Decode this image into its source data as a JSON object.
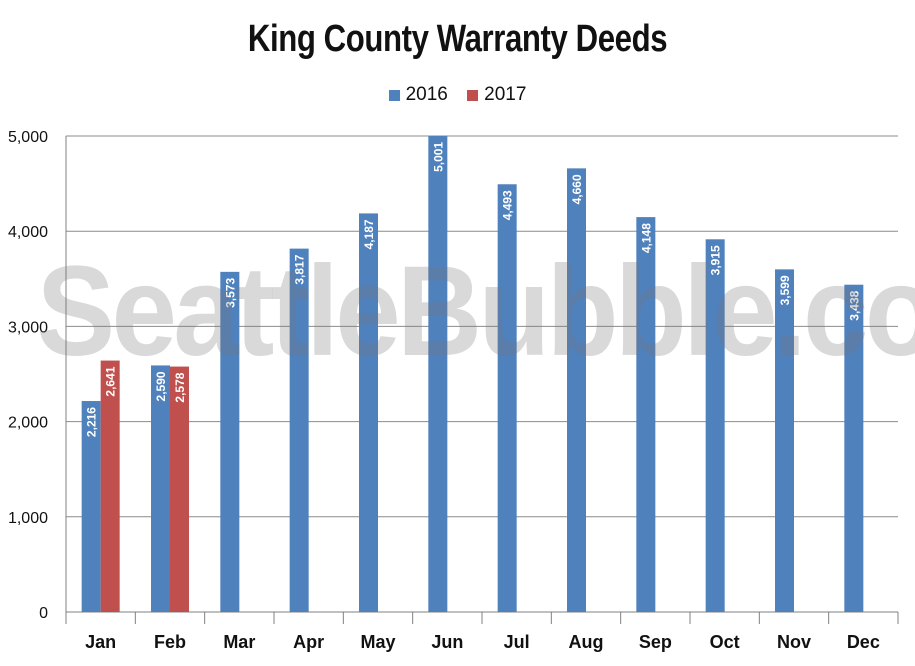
{
  "chart_data": {
    "type": "bar",
    "title": "King County Warranty Deeds",
    "categories": [
      "Jan",
      "Feb",
      "Mar",
      "Apr",
      "May",
      "Jun",
      "Jul",
      "Aug",
      "Sep",
      "Oct",
      "Nov",
      "Dec"
    ],
    "series": [
      {
        "name": "2016",
        "color": "#4f81bd",
        "values": [
          2216,
          2590,
          3573,
          3817,
          4187,
          5001,
          4493,
          4660,
          4148,
          3915,
          3599,
          3438
        ],
        "labels": [
          "2,216",
          "2,590",
          "3,573",
          "3,817",
          "4,187",
          "5,001",
          "4,493",
          "4,660",
          "4,148",
          "3,915",
          "3,599",
          "3,438"
        ]
      },
      {
        "name": "2017",
        "color": "#c0504d",
        "values": [
          2641,
          2578,
          null,
          null,
          null,
          null,
          null,
          null,
          null,
          null,
          null,
          null
        ],
        "labels": [
          "2,641",
          "2,578",
          "",
          "",
          "",
          "",
          "",
          "",
          "",
          "",
          "",
          ""
        ]
      }
    ],
    "ylim": [
      0,
      5000
    ],
    "yticks": [
      0,
      1000,
      2000,
      3000,
      4000,
      5000
    ],
    "ytick_labels": [
      "0",
      "1,000",
      "2,000",
      "3,000",
      "4,000",
      "5,000"
    ],
    "grid": true,
    "legend_position": "top",
    "xlabel": "",
    "ylabel": ""
  },
  "watermark": "SeattleBubble.com"
}
